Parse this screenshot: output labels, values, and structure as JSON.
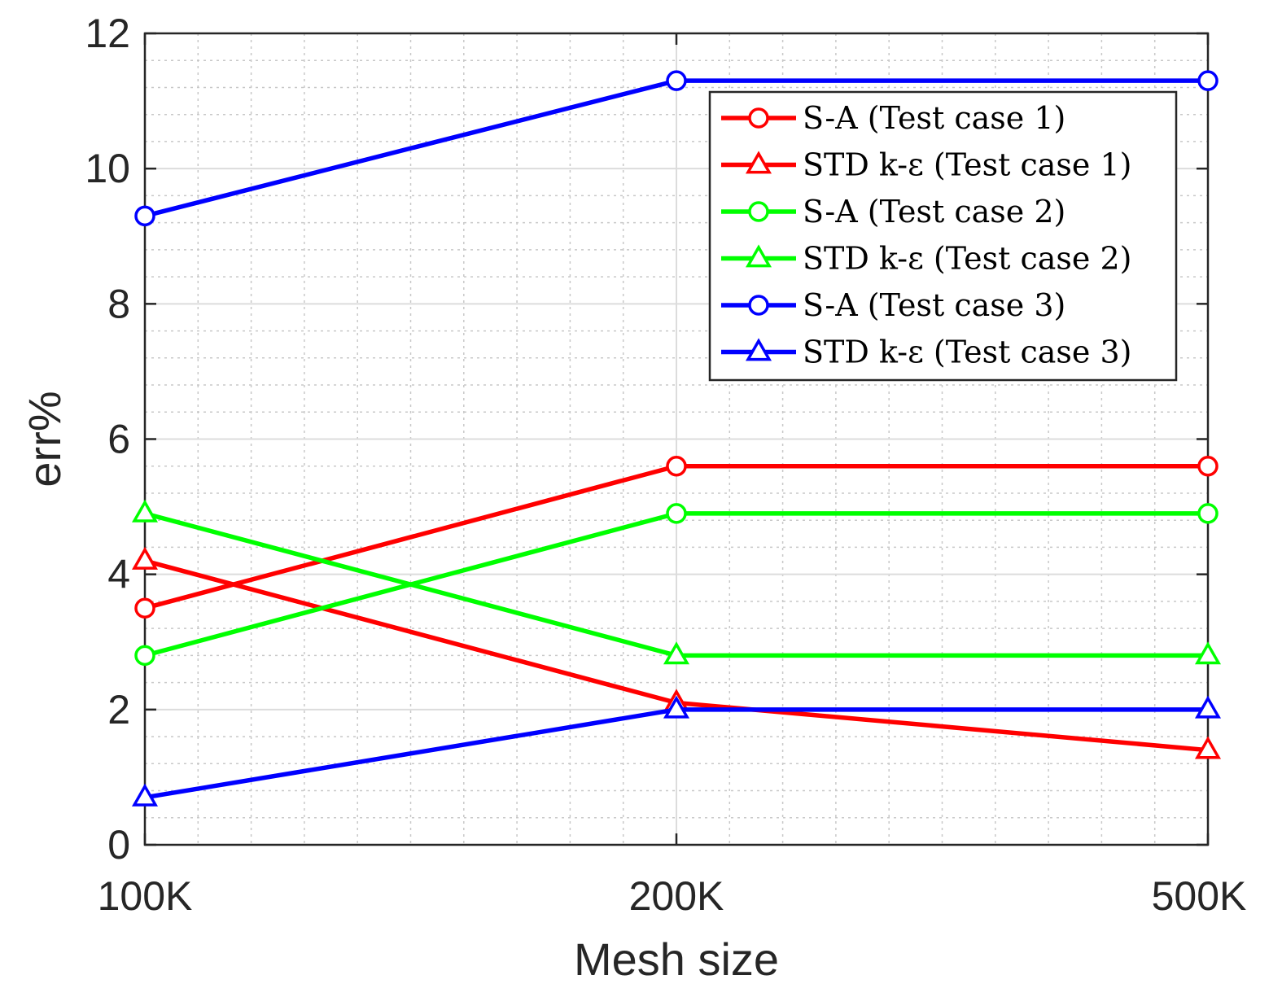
{
  "chart_data": {
    "type": "line",
    "categories": [
      "100K",
      "200K",
      "500K"
    ],
    "xlabel": "Mesh size",
    "ylabel": "err%",
    "ylim": [
      0,
      12
    ],
    "yticks": [
      "0",
      "2",
      "4",
      "6",
      "8",
      "10",
      "12"
    ],
    "grid": true,
    "minor_grid": true,
    "legend_position": "top-right",
    "series": [
      {
        "name": "S-A (Test case 1)",
        "marker": "circle",
        "color": "#ff0000",
        "values": [
          3.5,
          5.6,
          5.6
        ]
      },
      {
        "name": "STD k-ε (Test case 1)",
        "marker": "triangle",
        "color": "#ff0000",
        "values": [
          4.2,
          2.1,
          1.4
        ]
      },
      {
        "name": "S-A (Test case 2)",
        "marker": "circle",
        "color": "#00ff00",
        "values": [
          2.8,
          4.9,
          4.9
        ]
      },
      {
        "name": "STD k-ε (Test case 2)",
        "marker": "triangle",
        "color": "#00ff00",
        "values": [
          4.9,
          2.8,
          2.8
        ]
      },
      {
        "name": "S-A (Test case 3)",
        "marker": "circle",
        "color": "#0000ff",
        "values": [
          9.3,
          11.3,
          11.3
        ]
      },
      {
        "name": "STD k-ε (Test case 3)",
        "marker": "triangle",
        "color": "#0000ff",
        "values": [
          0.7,
          2.0,
          2.0
        ]
      }
    ]
  }
}
